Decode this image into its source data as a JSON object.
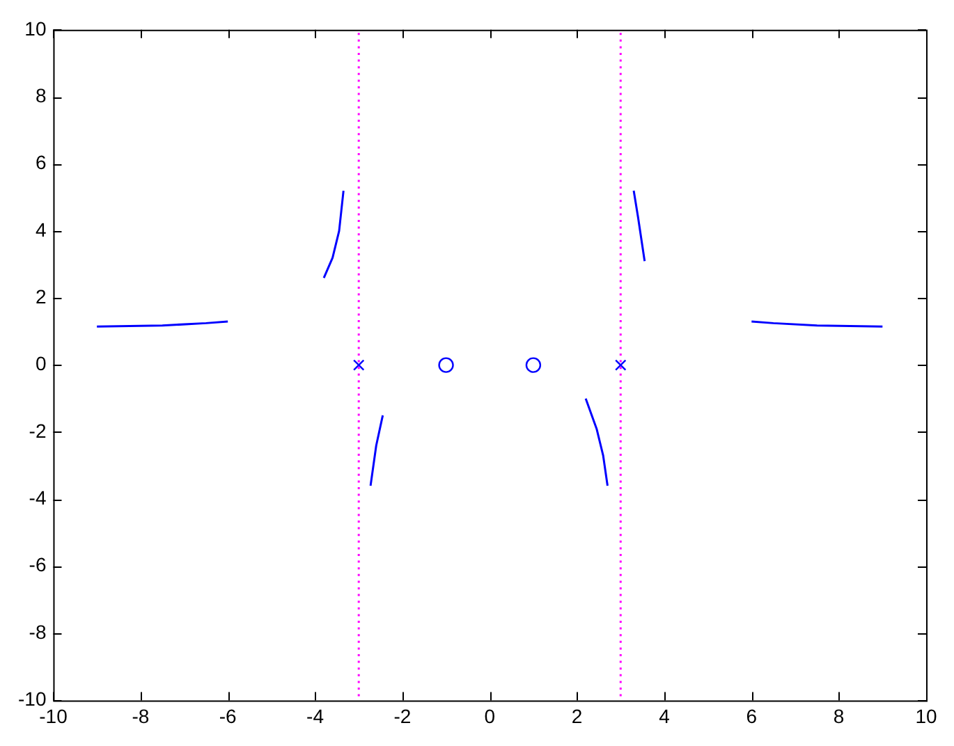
{
  "chart_data": {
    "type": "line",
    "xlim": [
      -10,
      10
    ],
    "ylim": [
      -10,
      10
    ],
    "xticks": [
      -10,
      -8,
      -6,
      -4,
      -2,
      0,
      2,
      4,
      6,
      8,
      10
    ],
    "yticks": [
      -10,
      -8,
      -6,
      -4,
      -2,
      0,
      2,
      4,
      6,
      8,
      10
    ],
    "grid": false,
    "legend": false,
    "line_style": "solid",
    "series": [
      {
        "color": "#0000ff",
        "marker": "none",
        "x": [
          -9,
          -7.5,
          -6.5,
          -6
        ],
        "values": [
          1.15,
          1.18,
          1.25,
          1.3
        ]
      },
      {
        "color": "#0000ff",
        "marker": "none",
        "x": [
          6,
          6.5,
          7.5,
          9
        ],
        "values": [
          1.3,
          1.25,
          1.18,
          1.15
        ]
      },
      {
        "color": "#0000ff",
        "marker": "none",
        "x": [
          -3.8,
          -3.6,
          -3.45,
          -3.35
        ],
        "values": [
          2.6,
          3.2,
          4,
          5.2
        ]
      },
      {
        "color": "#0000ff",
        "marker": "none",
        "x": [
          3.3,
          3.4,
          3.55
        ],
        "values": [
          5.2,
          4.4,
          3.1
        ]
      },
      {
        "color": "#0000ff",
        "marker": "none",
        "x": [
          -2.45,
          -2.6,
          -2.73
        ],
        "values": [
          -1.5,
          -2.4,
          -3.6
        ]
      },
      {
        "color": "#0000ff",
        "marker": "none",
        "x": [
          2.2,
          2.45,
          2.6,
          2.7
        ],
        "values": [
          -1,
          -1.9,
          -2.7,
          -3.6
        ]
      },
      {
        "type": "scatter",
        "color": "#0000ff",
        "marker": "cross",
        "x": [
          -3,
          3
        ],
        "values": [
          0,
          0
        ]
      },
      {
        "type": "scatter",
        "color": "#0000ff",
        "marker": "circle",
        "x": [
          -1,
          1
        ],
        "values": [
          0,
          0
        ]
      }
    ],
    "ref_lines": [
      {
        "axis": "x",
        "value": -3,
        "line_style": "dotted",
        "color": "#ff00ff"
      },
      {
        "axis": "x",
        "value": 3,
        "line_style": "dotted",
        "color": "#ff00ff"
      }
    ]
  }
}
